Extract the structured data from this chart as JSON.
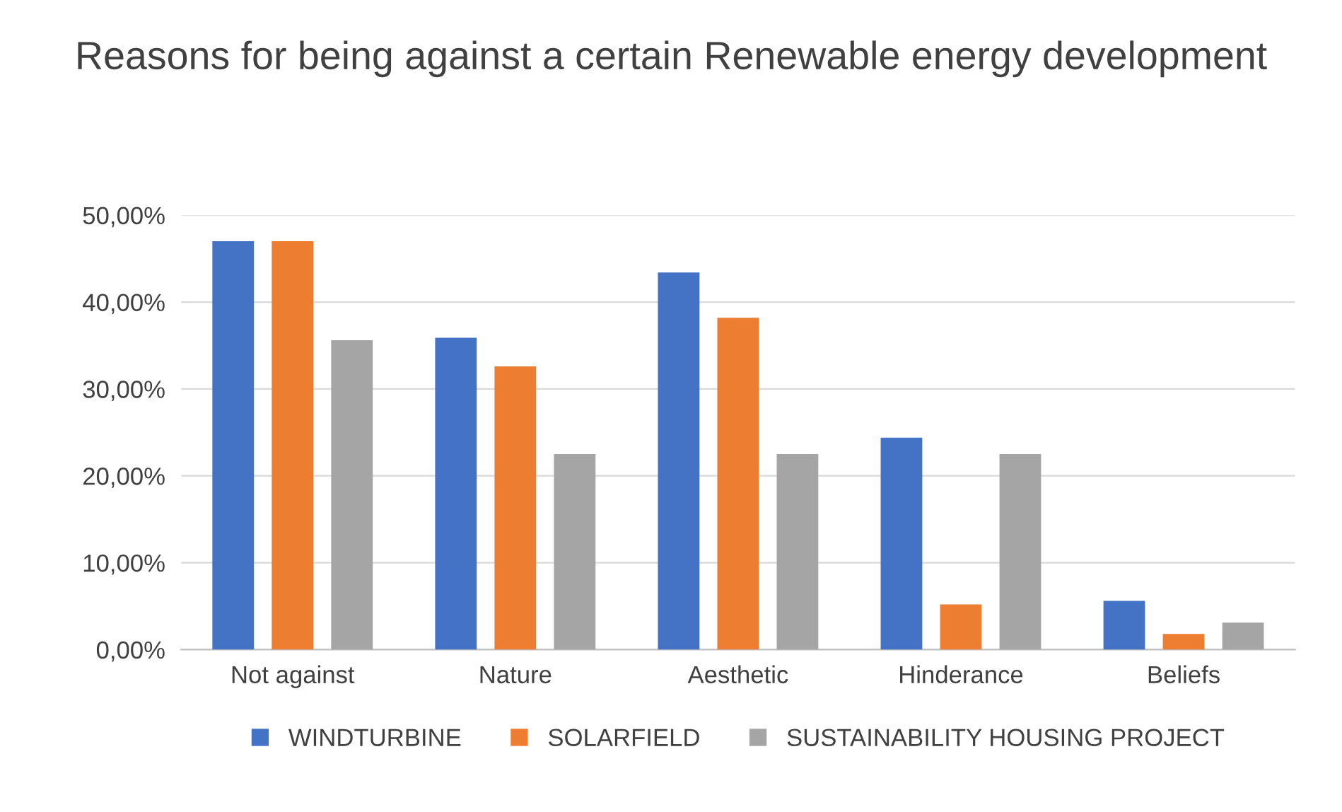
{
  "chart_data": {
    "type": "bar",
    "title": "Reasons for being against a certain Renewable energy development",
    "categories": [
      "Not against",
      "Nature",
      "Aesthetic",
      "Hinderance",
      "Beliefs"
    ],
    "series": [
      {
        "name": "WINDTURBINE",
        "color": "#4472c4",
        "values": [
          47.0,
          35.9,
          43.4,
          24.4,
          5.6
        ]
      },
      {
        "name": "SOLARFIELD",
        "color": "#ed7d31",
        "values": [
          47.0,
          32.6,
          38.2,
          5.2,
          1.8
        ]
      },
      {
        "name": "SUSTAINABILITY HOUSING PROJECT",
        "color": "#a5a5a5",
        "values": [
          35.6,
          22.5,
          22.5,
          22.5,
          3.1
        ]
      }
    ],
    "ylim": [
      0,
      50
    ],
    "yticks": [
      {
        "value": 0,
        "label": "0,00%"
      },
      {
        "value": 10,
        "label": "10,00%"
      },
      {
        "value": 20,
        "label": "20,00%"
      },
      {
        "value": 30,
        "label": "30,00%"
      },
      {
        "value": 40,
        "label": "40,00%"
      },
      {
        "value": 50,
        "label": "50,00%"
      }
    ],
    "grid": "y",
    "legend": "bottom"
  }
}
